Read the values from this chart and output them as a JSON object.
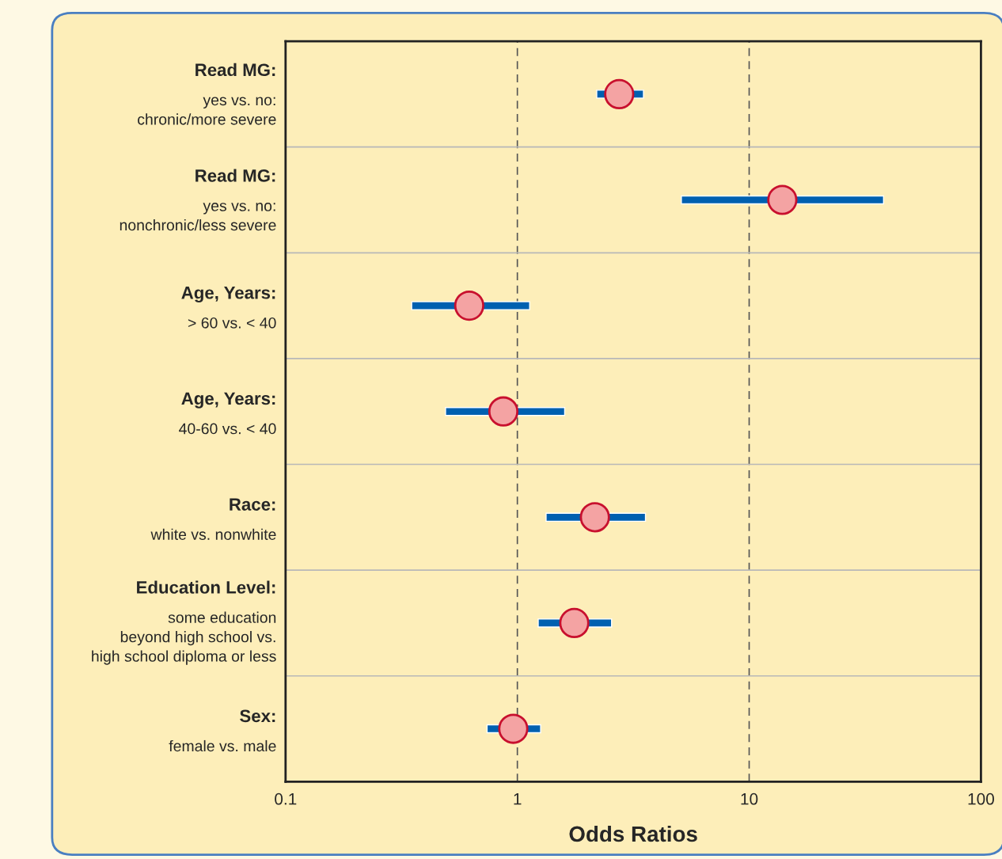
{
  "chart_data": {
    "type": "scatter",
    "orientation": "horizontal",
    "xlabel": "Odds Ratios",
    "categories": [
      "Read MG:\nyes vs. no:\nchronic/more severe",
      "Read MG:\nyes vs. no:\nnonchronic/less severe",
      "Age, Years:\n> 60 vs. < 40",
      "Age, Years:\n40-60 vs. < 40",
      "Race:\nwhite vs. nonwhite",
      "Education Level:\nsome education\nbeyond high school vs.\nhigh school diploma or less",
      "Sex:\nfemale vs. male"
    ],
    "series": [
      {
        "type": "bar",
        "color": "#0060b0",
        "base": [
          2.2,
          5.1,
          0.35,
          0.49,
          1.33,
          1.23,
          0.74
        ],
        "values": [
          1.3,
          32.9,
          0.78,
          1.11,
          2.24,
          1.32,
          0.52
        ]
      },
      {
        "color": "#f4a3a3",
        "values": [
          2.75,
          13.9,
          0.62,
          0.87,
          2.16,
          1.76,
          0.96
        ]
      }
    ],
    "marker": "circle",
    "log": "x",
    "xlim": [
      0.1,
      100
    ],
    "xticks": [
      0.1,
      1,
      10,
      100
    ],
    "grid": "x",
    "line_style": "dashed"
  }
}
